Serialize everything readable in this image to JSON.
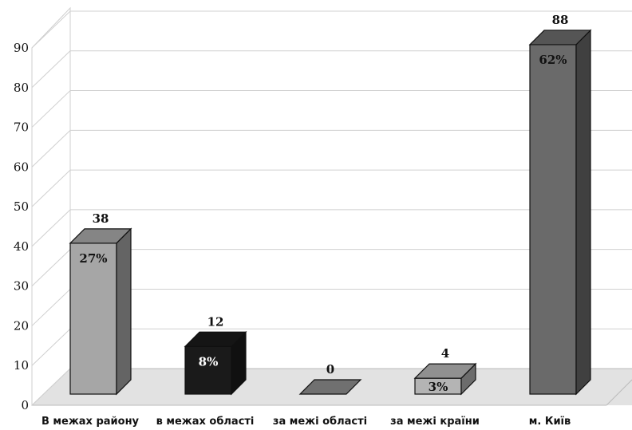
{
  "chart_data": {
    "type": "bar",
    "categories": [
      "В межах району",
      "в межах області",
      "за межі області",
      "за межі країни",
      "м. Київ"
    ],
    "values": [
      38,
      12,
      0,
      4,
      88
    ],
    "percent_labels": [
      "27%",
      "8%",
      "",
      "3%",
      "62%"
    ],
    "value_labels": [
      "38",
      "12",
      "0",
      "4",
      "88"
    ],
    "y_ticks": [
      "0",
      "10",
      "20",
      "30",
      "40",
      "50",
      "60",
      "70",
      "80",
      "90"
    ],
    "ylim": [
      0,
      90
    ],
    "title": "",
    "xlabel": "",
    "ylabel": "",
    "colors": [
      "#a6a6a6",
      "#1a1a1a",
      "#8c8c8c",
      "#b4b4b4",
      "#6a6a6a"
    ],
    "grid": true,
    "style": "3d-columns"
  }
}
